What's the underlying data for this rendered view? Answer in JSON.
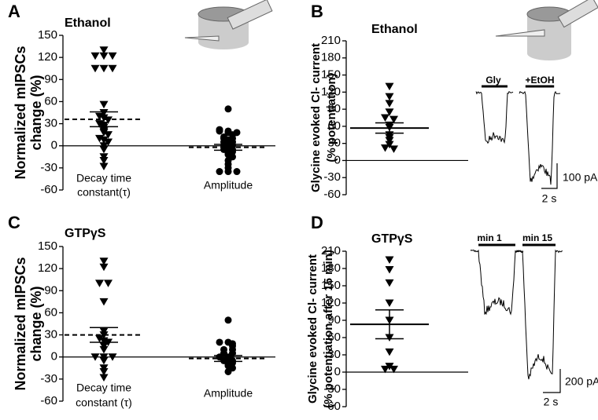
{
  "chart_data": [
    {
      "type": "dot",
      "letter": "A",
      "title": "Ethanol",
      "ylabel": [
        "Normalized  mIPSCs",
        "change (%)"
      ],
      "ylim": [
        -60,
        150
      ],
      "yticks": [
        -60,
        -30,
        0,
        30,
        60,
        90,
        120,
        150
      ],
      "color": "#000000",
      "groups": [
        {
          "label": [
            "Decay time",
            "constant(τ)"
          ],
          "marker": "triangle",
          "mean": 36,
          "sem": 10,
          "values": [
            130,
            122,
            122,
            122,
            105,
            105,
            105,
            56,
            45,
            40,
            38,
            35,
            30,
            28,
            25,
            22,
            20,
            18,
            15,
            10,
            8,
            5,
            0,
            -5,
            -15,
            -20,
            -28
          ]
        },
        {
          "label": [
            "Amplitude"
          ],
          "marker": "circle",
          "mean": -2,
          "sem": 4,
          "values": [
            50,
            22,
            20,
            20,
            18,
            18,
            15,
            12,
            10,
            10,
            8,
            5,
            5,
            2,
            0,
            0,
            -2,
            -5,
            -5,
            -8,
            -10,
            -12,
            -15,
            -20,
            -25,
            -30,
            -35,
            -35,
            -35
          ]
        }
      ]
    },
    {
      "type": "dot",
      "letter": "B",
      "title": "Ethanol",
      "ylabel": [
        "Glycine evoked Cl- current",
        "(% potentiation)"
      ],
      "ylim": [
        -60,
        210
      ],
      "yticks": [
        -60,
        -30,
        0,
        30,
        60,
        90,
        120,
        150,
        180,
        210
      ],
      "color": "#000000",
      "groups": [
        {
          "label": [],
          "marker": "triangle",
          "mean": 57,
          "sem": 9,
          "values": [
            130,
            112,
            100,
            85,
            75,
            72,
            62,
            58,
            45,
            40,
            35,
            28,
            22,
            20
          ]
        }
      ],
      "trace_labels": [
        "Gly",
        "+EtOH"
      ],
      "scale_labels": [
        "100 pA",
        "2 s"
      ]
    },
    {
      "type": "dot",
      "letter": "C",
      "title": "GTPγS",
      "ylabel": [
        "Normalized  mIPSCs",
        "change (%)"
      ],
      "ylim": [
        -60,
        150
      ],
      "yticks": [
        -60,
        -30,
        0,
        30,
        60,
        90,
        120,
        150
      ],
      "color": "#000000",
      "groups": [
        {
          "label": [
            "Decay time",
            "constant (τ)"
          ],
          "marker": "triangle",
          "mean": 30,
          "sem": 10,
          "values": [
            130,
            122,
            100,
            100,
            75,
            35,
            30,
            25,
            22,
            20,
            15,
            10,
            0,
            0,
            0,
            -5,
            -15,
            -20,
            -28
          ]
        },
        {
          "label": [
            "Amplitude"
          ],
          "marker": "circle",
          "mean": -2,
          "sem": 4,
          "values": [
            50,
            20,
            20,
            18,
            15,
            10,
            10,
            5,
            5,
            0,
            0,
            -2,
            -5,
            -5,
            -8,
            -10,
            -12,
            -15,
            -20
          ]
        }
      ]
    },
    {
      "type": "dot",
      "letter": "D",
      "title": "GTPγS",
      "ylabel": [
        "Glycine evoked Cl- current",
        "(% potentiation after 15 min)"
      ],
      "ylim": [
        -60,
        210
      ],
      "yticks": [
        -60,
        -30,
        0,
        30,
        60,
        90,
        120,
        150,
        180,
        210
      ],
      "color": "#000000",
      "groups": [
        {
          "label": [],
          "marker": "triangle",
          "mean": 83,
          "sem": 25,
          "values": [
            195,
            178,
            155,
            120,
            90,
            60,
            35,
            10,
            5,
            5
          ]
        }
      ],
      "trace_labels": [
        "min 1",
        "min 15"
      ],
      "scale_labels": [
        "200 pA",
        "2 s"
      ]
    }
  ]
}
